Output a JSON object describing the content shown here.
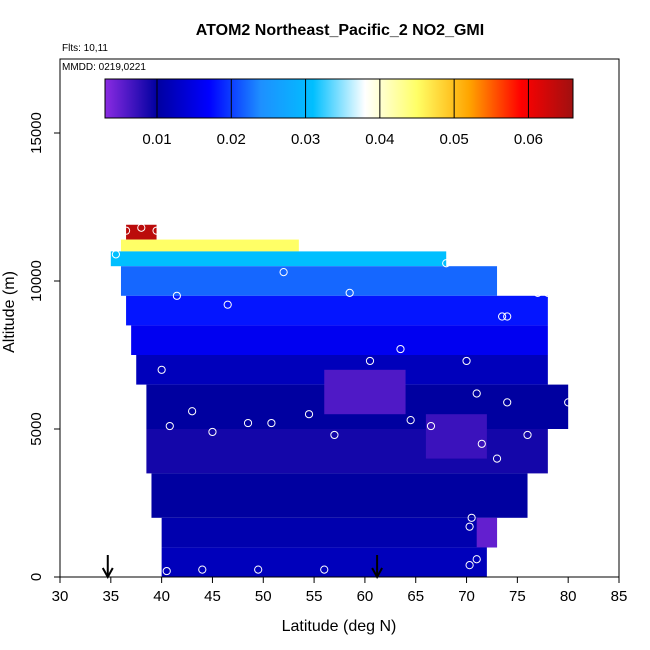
{
  "chart_data": {
    "type": "heatmap",
    "title": "ATOM2 Northeast_Pacific_2 NO2_GMI",
    "flights_label": "Flts: 10,11",
    "dates_label": "MMDD: 0219,0221",
    "xlabel": "Latitude (deg N)",
    "ylabel": "Altitude (m)",
    "xlim": [
      30,
      85
    ],
    "ylim": [
      0,
      17500
    ],
    "x_ticks": [
      "30",
      "35",
      "40",
      "45",
      "50",
      "55",
      "60",
      "65",
      "70",
      "75",
      "80",
      "85"
    ],
    "y_ticks": [
      "0",
      "5000",
      "10000",
      "15000"
    ],
    "colorbar": {
      "range": [
        0.003,
        0.066
      ],
      "ticks": [
        "0.01",
        "0.02",
        "0.03",
        "0.04",
        "0.05",
        "0.06"
      ],
      "colors": [
        "#8a2be2",
        "#0000a0",
        "#0000ff",
        "#1e90ff",
        "#00bfff",
        "#ffffff",
        "#ffff66",
        "#ffa500",
        "#ff0000",
        "#a01010"
      ]
    },
    "grid": false,
    "legend": "colorbar top",
    "arrows_at_latitude": [
      34.7,
      61.2
    ],
    "cells": [
      {
        "lat": [
          36.5,
          39.5
        ],
        "alt": [
          11400,
          11900
        ],
        "value": 0.064
      },
      {
        "lat": [
          36,
          53.5
        ],
        "alt": [
          11000,
          11400
        ],
        "value": 0.045
      },
      {
        "lat": [
          35,
          68
        ],
        "alt": [
          10500,
          11000
        ],
        "value": 0.031
      },
      {
        "lat": [
          36,
          73
        ],
        "alt": [
          9500,
          10500
        ],
        "value": 0.022
      },
      {
        "lat": [
          36.5,
          78
        ],
        "alt": [
          8500,
          9500
        ],
        "value": 0.018
      },
      {
        "lat": [
          37,
          78
        ],
        "alt": [
          7500,
          8500
        ],
        "value": 0.016
      },
      {
        "lat": [
          37.5,
          78
        ],
        "alt": [
          6500,
          7500
        ],
        "value": 0.012
      },
      {
        "lat": [
          38.5,
          80
        ],
        "alt": [
          5000,
          6500
        ],
        "value": 0.01
      },
      {
        "lat": [
          38.5,
          78
        ],
        "alt": [
          3500,
          5000
        ],
        "value": 0.009
      },
      {
        "lat": [
          39,
          76
        ],
        "alt": [
          2000,
          3500
        ],
        "value": 0.01
      },
      {
        "lat": [
          40,
          73
        ],
        "alt": [
          1000,
          2000
        ],
        "value": 0.011
      },
      {
        "lat": [
          40,
          72
        ],
        "alt": [
          0,
          1000
        ],
        "value": 0.012
      },
      {
        "lat": [
          56,
          64
        ],
        "alt": [
          5500,
          7000
        ],
        "value": 0.006
      },
      {
        "lat": [
          66,
          72
        ],
        "alt": [
          4000,
          5500
        ],
        "value": 0.007
      },
      {
        "lat": [
          71,
          73
        ],
        "alt": [
          1000,
          2000
        ],
        "value": 0.005
      }
    ],
    "points": [
      {
        "lat": 36.5,
        "alt": 11700
      },
      {
        "lat": 38,
        "alt": 11800
      },
      {
        "lat": 39.5,
        "alt": 11700
      },
      {
        "lat": 35.5,
        "alt": 10900
      },
      {
        "lat": 68,
        "alt": 10600
      },
      {
        "lat": 52,
        "alt": 10300
      },
      {
        "lat": 74,
        "alt": 10000
      },
      {
        "lat": 41.5,
        "alt": 9500
      },
      {
        "lat": 58.5,
        "alt": 9600
      },
      {
        "lat": 77,
        "alt": 9600
      },
      {
        "lat": 78,
        "alt": 9600
      },
      {
        "lat": 46.5,
        "alt": 9200
      },
      {
        "lat": 73.5,
        "alt": 8800
      },
      {
        "lat": 74,
        "alt": 8800
      },
      {
        "lat": 63.5,
        "alt": 7700
      },
      {
        "lat": 60.5,
        "alt": 7300
      },
      {
        "lat": 70,
        "alt": 7300
      },
      {
        "lat": 40,
        "alt": 7000
      },
      {
        "lat": 71,
        "alt": 6200
      },
      {
        "lat": 74,
        "alt": 5900
      },
      {
        "lat": 80,
        "alt": 5900
      },
      {
        "lat": 43,
        "alt": 5600
      },
      {
        "lat": 54.5,
        "alt": 5500
      },
      {
        "lat": 64.5,
        "alt": 5300
      },
      {
        "lat": 48.5,
        "alt": 5200
      },
      {
        "lat": 50.8,
        "alt": 5200
      },
      {
        "lat": 66.5,
        "alt": 5100
      },
      {
        "lat": 40.8,
        "alt": 5100
      },
      {
        "lat": 45,
        "alt": 4900
      },
      {
        "lat": 57,
        "alt": 4800
      },
      {
        "lat": 76,
        "alt": 4800
      },
      {
        "lat": 71.5,
        "alt": 4500
      },
      {
        "lat": 73,
        "alt": 4000
      },
      {
        "lat": 70.5,
        "alt": 2000
      },
      {
        "lat": 70.3,
        "alt": 1700
      },
      {
        "lat": 71,
        "alt": 600
      },
      {
        "lat": 70.3,
        "alt": 400
      },
      {
        "lat": 40.5,
        "alt": 200
      },
      {
        "lat": 44,
        "alt": 250
      },
      {
        "lat": 49.5,
        "alt": 250
      },
      {
        "lat": 56,
        "alt": 250
      }
    ]
  }
}
